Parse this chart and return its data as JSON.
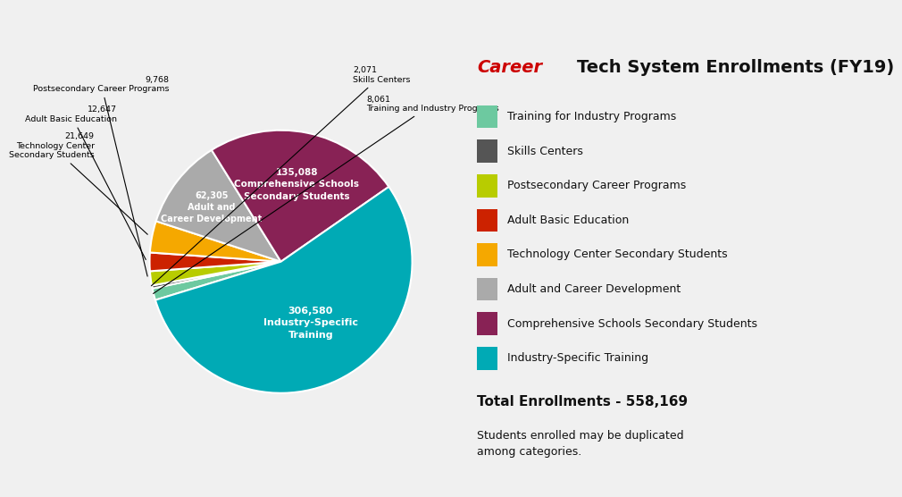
{
  "segments": [
    {
      "label": "Training for Industry Programs",
      "value": 8061,
      "color": "#6dc9a0"
    },
    {
      "label": "Skills Centers",
      "value": 2071,
      "color": "#555555"
    },
    {
      "label": "Postsecondary Career Programs",
      "value": 9768,
      "color": "#b8cc00"
    },
    {
      "label": "Adult Basic Education",
      "value": 12647,
      "color": "#cc2200"
    },
    {
      "label": "Technology Center Secondary Students",
      "value": 21649,
      "color": "#f5a800"
    },
    {
      "label": "Adult and Career Development",
      "value": 62305,
      "color": "#aaaaaa"
    },
    {
      "label": "Comprehensive Schools Secondary Students",
      "value": 135088,
      "color": "#882255"
    },
    {
      "label": "Industry-Specific Training",
      "value": 306580,
      "color": "#00aab5"
    }
  ],
  "total": "558,169",
  "total_note": "Students enrolled may be duplicated\namong categories.",
  "bg_color": "#f0f0f0",
  "startangle": 197,
  "legend_items": [
    [
      "Training for Industry Programs",
      "#6dc9a0"
    ],
    [
      "Skills Centers",
      "#555555"
    ],
    [
      "Postsecondary Career Programs",
      "#b8cc00"
    ],
    [
      "Adult Basic Education",
      "#cc2200"
    ],
    [
      "Technology Center Secondary Students",
      "#f5a800"
    ],
    [
      "Adult and Career Development",
      "#aaaaaa"
    ],
    [
      "Comprehensive Schools Secondary Students",
      "#882255"
    ],
    [
      "Industry-Specific Training",
      "#00aab5"
    ]
  ]
}
